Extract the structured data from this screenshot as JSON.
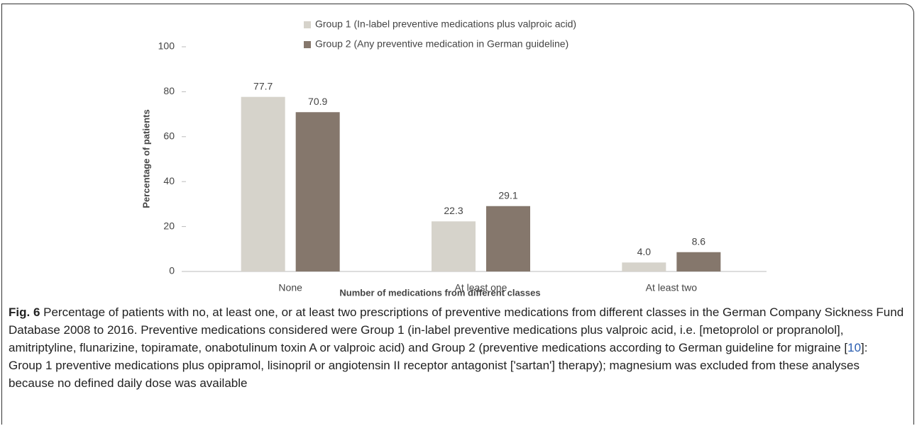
{
  "chart_data": {
    "type": "bar",
    "categories": [
      "None",
      "At least one",
      "At least two"
    ],
    "series": [
      {
        "name": "Group 1 (In-label preventive medications plus valproic acid)",
        "color": "#d6d3cb",
        "values": [
          77.7,
          22.3,
          4.0
        ],
        "value_labels": [
          "77.7",
          "22.3",
          "4.0"
        ]
      },
      {
        "name": "Group 2 (Any preventive medication in German guideline)",
        "color": "#85776c",
        "values": [
          70.9,
          29.1,
          8.6
        ],
        "value_labels": [
          "70.9",
          "29.1",
          "8.6"
        ]
      }
    ],
    "ylim": [
      0,
      100
    ],
    "yticks": [
      0,
      20,
      40,
      60,
      80,
      100
    ],
    "grid": false,
    "ylabel": "Percentage of patients",
    "xlabel": "Number of medications from different classes"
  },
  "caption": {
    "label": "Fig. 6",
    "text_before": "Percentage of patients with no, at least one, or at least two prescriptions of preventive medications from different classes in the German Company Sickness Fund Database 2008 to 2016. Preventive medications considered were Group 1 (in-label preventive medications plus valproic acid, i.e. [metoprolol or propranolol], amitriptyline, flunarizine, topiramate, onabotulinum toxin A or valproic acid) and Group 2 (preventive medications according to German guideline for migraine [",
    "reference": "10",
    "text_after": "]: Group 1 preventive medications plus opipramol, lisinopril or angiotensin II receptor antagonist ['sartan'] therapy); magnesium was excluded from these analyses because no defined daily dose was available"
  }
}
